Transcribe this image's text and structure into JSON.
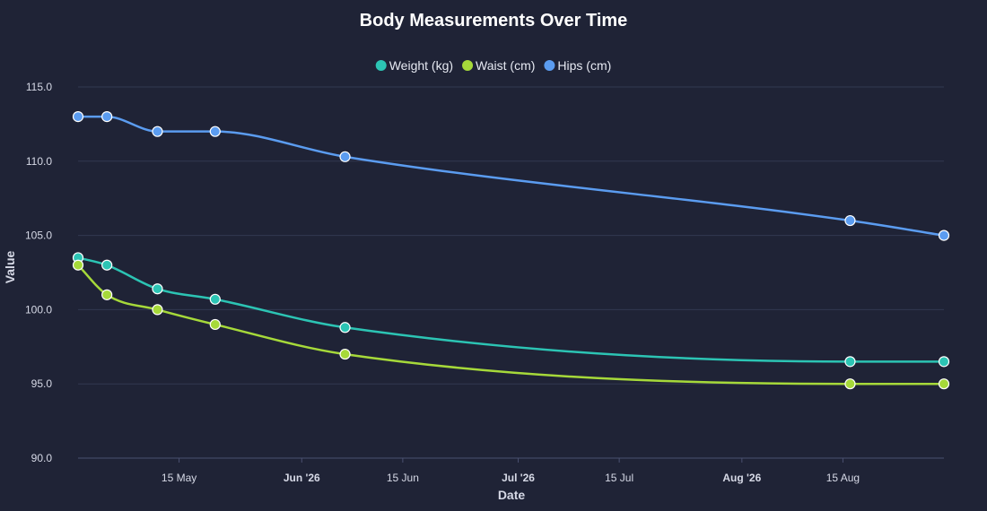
{
  "chart_data": {
    "type": "line",
    "title": "Body Measurements Over Time",
    "xlabel": "Date",
    "ylabel": "Value",
    "x": [
      "2026-05-01",
      "2026-05-05",
      "2026-05-12",
      "2026-05-20",
      "2026-06-07",
      "2026-08-16",
      "2026-08-29"
    ],
    "series": [
      {
        "name": "Weight (kg)",
        "color": "#2cc4b4",
        "values": [
          103.5,
          103.0,
          101.4,
          100.7,
          98.8,
          96.5,
          96.5
        ]
      },
      {
        "name": "Waist (cm)",
        "color": "#a6d93a",
        "values": [
          103.0,
          101.0,
          100.0,
          99.0,
          97.0,
          95.0,
          95.0
        ]
      },
      {
        "name": "Hips (cm)",
        "color": "#5b9cf0",
        "values": [
          113.0,
          113.0,
          112.0,
          112.0,
          110.3,
          106.0,
          105.0
        ]
      }
    ],
    "ylim": [
      90,
      115
    ],
    "xlim": [
      "2026-05-01",
      "2026-08-29"
    ],
    "y_ticks": [
      "90.0",
      "95.0",
      "100.0",
      "105.0",
      "110.0",
      "115.0"
    ],
    "x_ticks": [
      {
        "date": "2026-05-15",
        "label": "15 May",
        "major": false
      },
      {
        "date": "2026-06-01",
        "label": "Jun '26",
        "major": true
      },
      {
        "date": "2026-06-15",
        "label": "15 Jun",
        "major": false
      },
      {
        "date": "2026-07-01",
        "label": "Jul '26",
        "major": true
      },
      {
        "date": "2026-07-15",
        "label": "15 Jul",
        "major": false
      },
      {
        "date": "2026-08-01",
        "label": "Aug '26",
        "major": true
      },
      {
        "date": "2026-08-15",
        "label": "15 Aug",
        "major": false
      }
    ],
    "grid": true,
    "legend_position": "top-center"
  }
}
